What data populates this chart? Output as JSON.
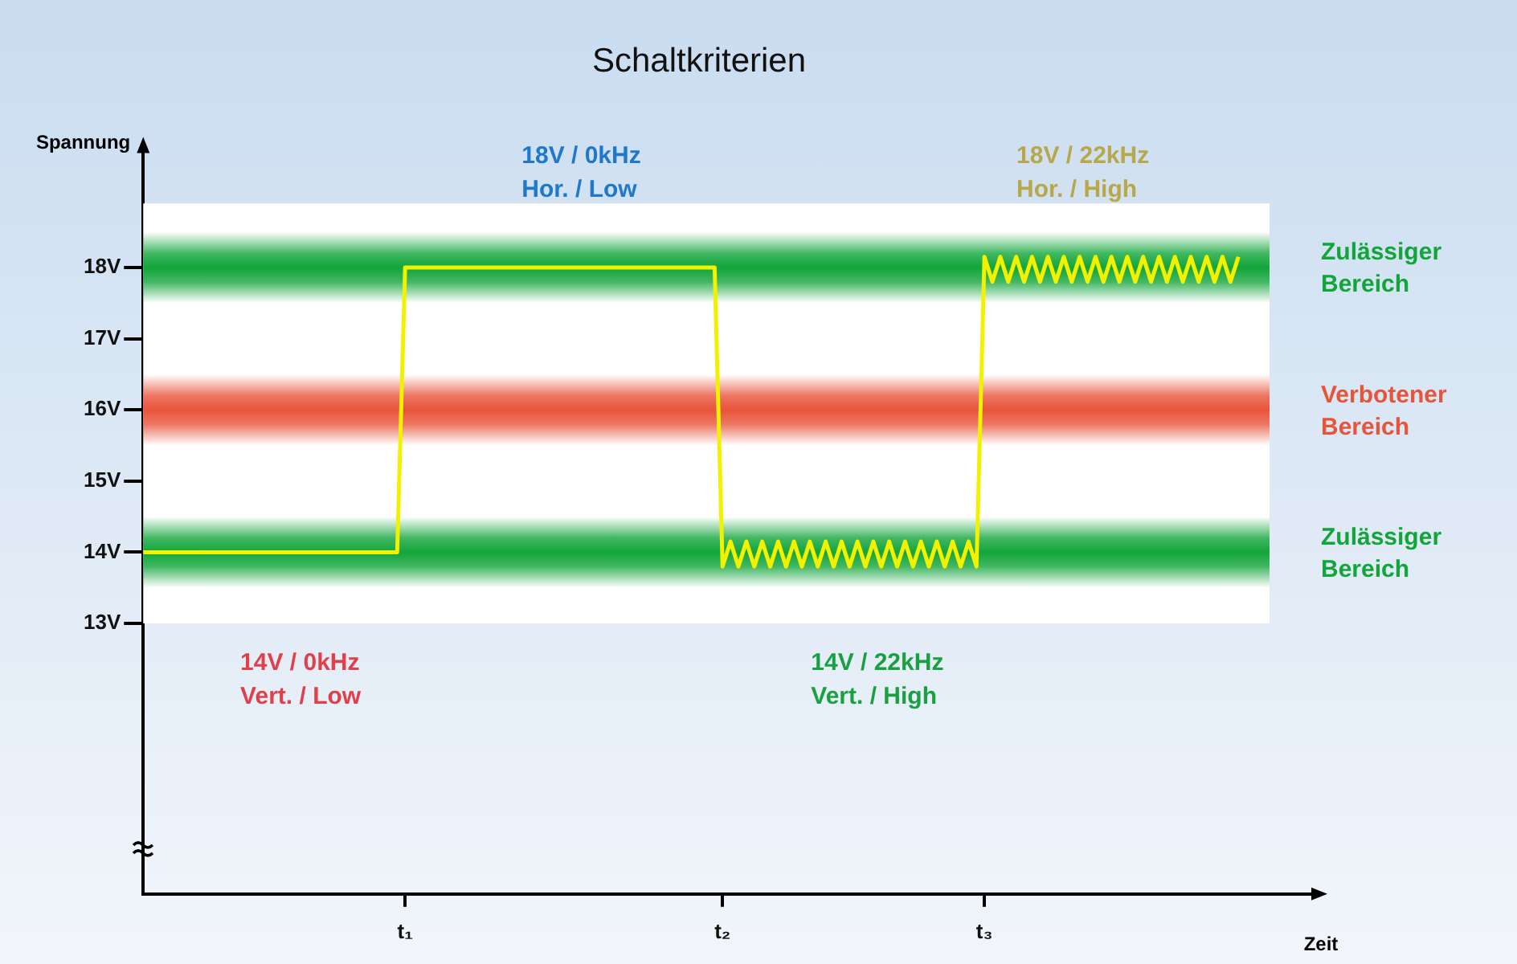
{
  "chart_data": {
    "type": "line",
    "title": "Schaltkriterien",
    "xlabel": "Zeit",
    "ylabel": "Spannung",
    "marker": "none",
    "grid": false,
    "legend": false,
    "categories": [
      null,
      null,
      null,
      null,
      null,
      null,
      null,
      null,
      null,
      null,
      null,
      null,
      null,
      null,
      null,
      null,
      null,
      null,
      null,
      null,
      null,
      null,
      null,
      null,
      null,
      null,
      null,
      null,
      null,
      null,
      null,
      null,
      null,
      "t₁",
      null,
      null,
      null,
      null,
      null,
      null,
      null,
      null,
      null,
      null,
      null,
      null,
      null,
      null,
      null,
      null,
      null,
      null,
      null,
      null,
      null,
      null,
      null,
      null,
      null,
      null,
      null,
      null,
      null,
      null,
      null,
      null,
      null,
      null,
      null,
      null,
      null,
      null,
      null,
      "t₂",
      null,
      null,
      null,
      null,
      null,
      null,
      null,
      null,
      null,
      null,
      null,
      null,
      null,
      null,
      null,
      null,
      null,
      null,
      null,
      null,
      null,
      null,
      null,
      null,
      null,
      null,
      null,
      null,
      null,
      null,
      null,
      null,
      "t₃",
      null,
      null,
      null,
      null,
      null,
      null,
      null,
      null,
      null,
      null,
      null,
      null,
      null,
      null,
      null,
      null,
      null,
      null,
      null,
      null,
      null,
      null,
      null,
      null,
      null,
      null,
      null,
      null,
      null,
      null,
      null,
      null,
      null,
      null,
      null,
      null,
      null,
      null,
      null,
      null,
      null,
      null
    ],
    "ylim": [
      9.2,
      19.7
    ],
    "yticks": [
      {
        "value": 13,
        "label": "13V"
      },
      {
        "value": 14,
        "label": "14V"
      },
      {
        "value": 15,
        "label": "15V"
      },
      {
        "value": 16,
        "label": "16V"
      },
      {
        "value": 17,
        "label": "17V"
      },
      {
        "value": 18,
        "label": "18V"
      }
    ],
    "bands": [
      {
        "axis": "y",
        "from": 13,
        "to": 18.9,
        "color": "#ffffff"
      },
      {
        "axis": "y",
        "from": 17.5,
        "to": 18.5,
        "label": "Zulässiger\nBereich",
        "color": "#12a53a"
      },
      {
        "axis": "y",
        "from": 15.5,
        "to": 16.5,
        "label": "Verbotener\nBereich",
        "color": "#e8543a"
      },
      {
        "axis": "y",
        "from": 13.5,
        "to": 14.5,
        "label": "Zulässiger\nBereich",
        "color": "#12a53a"
      }
    ],
    "annotations": [
      "18V / 0kHz\nHor. / Low",
      "18V / 22kHz\nHor. / High",
      "14V / 0kHz\nVert. / Low",
      "14V / 22kHz\nVert. / High"
    ],
    "series": [
      {
        "color": "#f2f200",
        "values": [
          14,
          14,
          14,
          14,
          14,
          14,
          14,
          14,
          14,
          14,
          14,
          14,
          14,
          14,
          14,
          14,
          14,
          14,
          14,
          14,
          14,
          14,
          14,
          14,
          14,
          14,
          14,
          14,
          14,
          14,
          14,
          14,
          14,
          18,
          18,
          18,
          18,
          18,
          18,
          18,
          18,
          18,
          18,
          18,
          18,
          18,
          18,
          18,
          18,
          18,
          18,
          18,
          18,
          18,
          18,
          18,
          18,
          18,
          18,
          18,
          18,
          18,
          18,
          18,
          18,
          18,
          18,
          18,
          18,
          18,
          18,
          18,
          18,
          13.8,
          14.15,
          13.8,
          14.15,
          13.8,
          14.15,
          13.8,
          14.15,
          13.8,
          14.15,
          13.8,
          14.15,
          13.8,
          14.15,
          13.8,
          14.15,
          13.8,
          14.15,
          13.8,
          14.15,
          13.8,
          14.15,
          13.8,
          14.15,
          13.8,
          14.15,
          13.8,
          14.15,
          13.8,
          14.15,
          13.8,
          14.15,
          13.8,
          18.15,
          17.8,
          18.15,
          17.8,
          18.15,
          17.8,
          18.15,
          17.8,
          18.15,
          17.8,
          18.15,
          17.8,
          18.15,
          17.8,
          18.15,
          17.8,
          18.15,
          17.8,
          18.15,
          17.8,
          18.15,
          17.8,
          18.15,
          17.8,
          18.15,
          17.8,
          18.15,
          17.8,
          18.15,
          17.8,
          18.15,
          17.8,
          18.15,
          null,
          null,
          null,
          null,
          null,
          null,
          null,
          null,
          null,
          null
        ]
      }
    ]
  }
}
